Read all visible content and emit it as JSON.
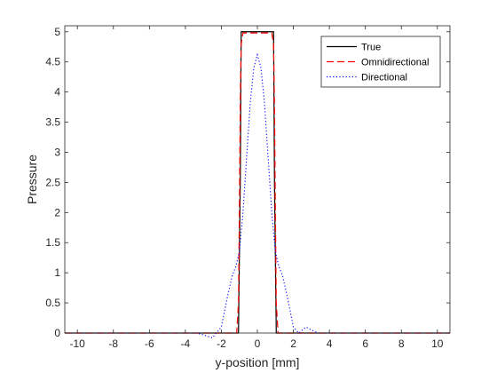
{
  "chart_data": {
    "type": "line",
    "title": "",
    "xlabel": "y-position [mm]",
    "ylabel": "Pressure",
    "xlim": [
      -10.7,
      10.7
    ],
    "ylim": [
      0,
      5.1
    ],
    "grid": false,
    "legend_position": "top-right",
    "x_ticks": [
      -10,
      -8,
      -6,
      -4,
      -2,
      0,
      2,
      4,
      6,
      8,
      10
    ],
    "x_tick_labels": [
      "-10",
      "-8",
      "-6",
      "-4",
      "-2",
      "0",
      "2",
      "4",
      "6",
      "8",
      "10"
    ],
    "y_ticks": [
      0,
      0.5,
      1,
      1.5,
      2,
      2.5,
      3,
      3.5,
      4,
      4.5,
      5
    ],
    "y_tick_labels": [
      "0",
      "0.5",
      "1",
      "1.5",
      "2",
      "2.5",
      "3",
      "3.5",
      "4",
      "4.5",
      "5"
    ],
    "series": [
      {
        "name": "True",
        "color": "#000000",
        "dash": "solid",
        "x": [
          -10.7,
          -1.05,
          -0.95,
          -0.9,
          0.9,
          0.95,
          1.05,
          10.7
        ],
        "y": [
          0,
          0,
          2.5,
          5,
          5,
          2.5,
          0,
          0
        ]
      },
      {
        "name": "Omnidirectional",
        "color": "#ff0000",
        "dash": "dashed",
        "x": [
          -10.7,
          -1.15,
          -1.05,
          -1.0,
          -0.95,
          -0.9,
          -0.8,
          0.8,
          0.9,
          0.95,
          1.0,
          1.05,
          1.15,
          10.7
        ],
        "y": [
          0,
          0,
          0.5,
          2.0,
          3.8,
          4.8,
          4.98,
          4.98,
          4.8,
          3.8,
          2.0,
          0.5,
          0,
          0
        ]
      },
      {
        "name": "Directional",
        "color": "#0000ff",
        "dash": "dotted",
        "x": [
          -10.7,
          -3.4,
          -3.0,
          -2.5,
          -2.0,
          -1.7,
          -1.4,
          -1.2,
          -1.0,
          -0.8,
          -0.6,
          -0.4,
          -0.2,
          0,
          0.2,
          0.4,
          0.6,
          0.8,
          1.0,
          1.2,
          1.4,
          1.7,
          2.0,
          2.3,
          2.7,
          3.0,
          3.4,
          10.7
        ],
        "y": [
          0,
          0,
          -0.03,
          -0.08,
          0.1,
          0.55,
          0.95,
          1.1,
          1.35,
          2.0,
          2.9,
          3.8,
          4.4,
          4.62,
          4.4,
          3.8,
          2.9,
          2.0,
          1.35,
          1.1,
          0.95,
          0.55,
          0.1,
          0.0,
          0.1,
          0.05,
          0,
          0
        ]
      }
    ]
  }
}
